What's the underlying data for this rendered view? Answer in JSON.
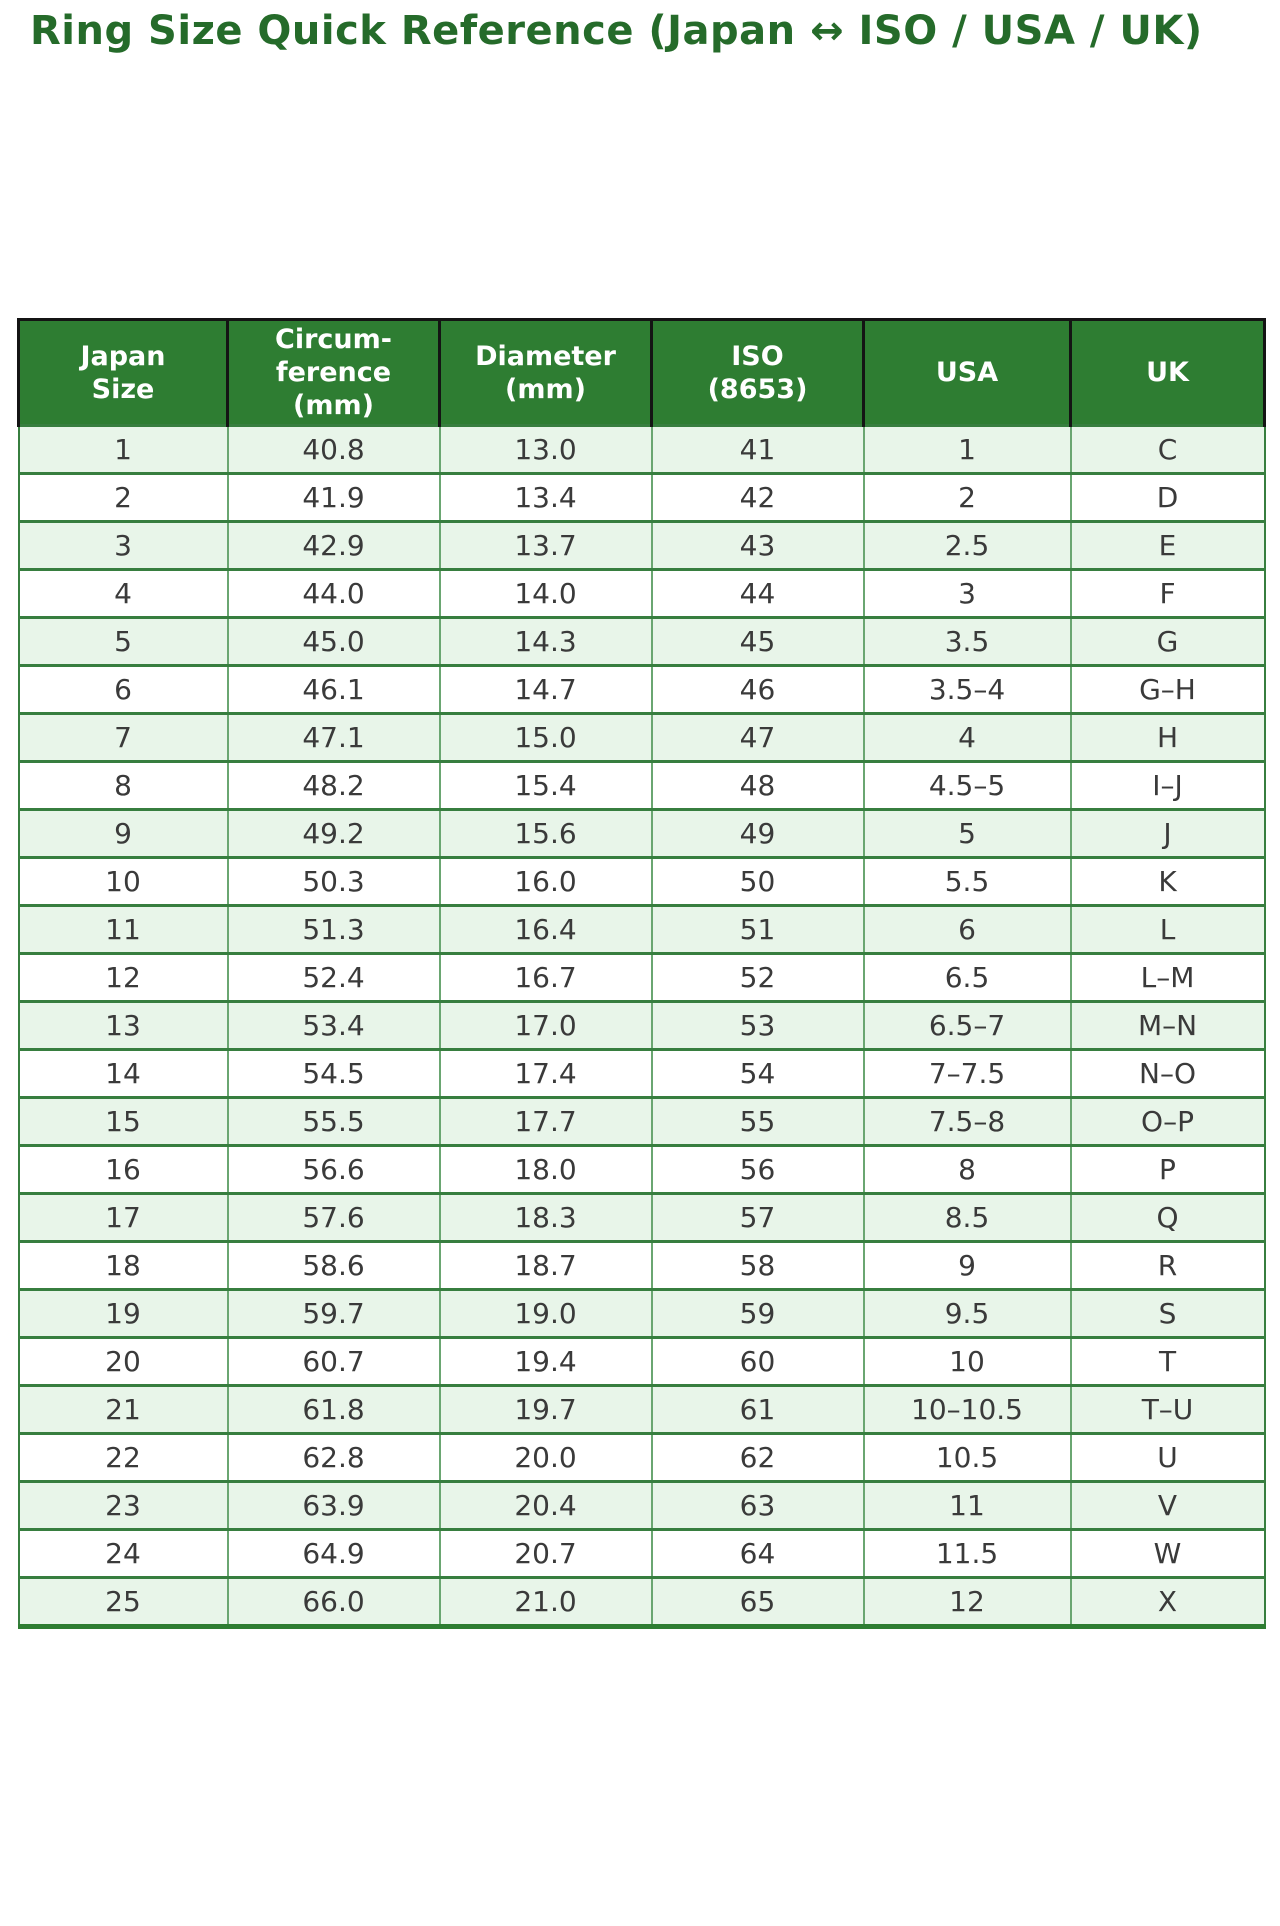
{
  "page": {
    "title": "Ring Size Quick Reference (Japan ↔ ISO / USA / UK)"
  },
  "colors": {
    "title_text": "#256b2a",
    "header_bg": "#2e7d32",
    "header_text": "#ffffff",
    "header_grid_line": "#141414",
    "row_alt_bg": "#e8f5e9",
    "row_bg": "#ffffff",
    "body_text": "#3a3a3a",
    "grid_line": "#377e3f"
  },
  "table": {
    "display_headers": [
      "Japan\nSize",
      "Circum-\nference\n(mm)",
      "Diameter\n(mm)",
      "ISO\n(8653)",
      "USA",
      "UK"
    ]
  },
  "chart_data": {
    "type": "table",
    "title": "Ring Size Quick Reference (Japan ↔ ISO / USA / UK)",
    "columns": [
      "Japan Size",
      "Circumference (mm)",
      "Diameter (mm)",
      "ISO (8653)",
      "USA",
      "UK"
    ],
    "rows": [
      [
        "1",
        "40.8",
        "13.0",
        "41",
        "1",
        "C"
      ],
      [
        "2",
        "41.9",
        "13.4",
        "42",
        "2",
        "D"
      ],
      [
        "3",
        "42.9",
        "13.7",
        "43",
        "2.5",
        "E"
      ],
      [
        "4",
        "44.0",
        "14.0",
        "44",
        "3",
        "F"
      ],
      [
        "5",
        "45.0",
        "14.3",
        "45",
        "3.5",
        "G"
      ],
      [
        "6",
        "46.1",
        "14.7",
        "46",
        "3.5–4",
        "G–H"
      ],
      [
        "7",
        "47.1",
        "15.0",
        "47",
        "4",
        "H"
      ],
      [
        "8",
        "48.2",
        "15.4",
        "48",
        "4.5–5",
        "I–J"
      ],
      [
        "9",
        "49.2",
        "15.6",
        "49",
        "5",
        "J"
      ],
      [
        "10",
        "50.3",
        "16.0",
        "50",
        "5.5",
        "K"
      ],
      [
        "11",
        "51.3",
        "16.4",
        "51",
        "6",
        "L"
      ],
      [
        "12",
        "52.4",
        "16.7",
        "52",
        "6.5",
        "L–M"
      ],
      [
        "13",
        "53.4",
        "17.0",
        "53",
        "6.5–7",
        "M–N"
      ],
      [
        "14",
        "54.5",
        "17.4",
        "54",
        "7–7.5",
        "N–O"
      ],
      [
        "15",
        "55.5",
        "17.7",
        "55",
        "7.5–8",
        "O–P"
      ],
      [
        "16",
        "56.6",
        "18.0",
        "56",
        "8",
        "P"
      ],
      [
        "17",
        "57.6",
        "18.3",
        "57",
        "8.5",
        "Q"
      ],
      [
        "18",
        "58.6",
        "18.7",
        "58",
        "9",
        "R"
      ],
      [
        "19",
        "59.7",
        "19.0",
        "59",
        "9.5",
        "S"
      ],
      [
        "20",
        "60.7",
        "19.4",
        "60",
        "10",
        "T"
      ],
      [
        "21",
        "61.8",
        "19.7",
        "61",
        "10–10.5",
        "T–U"
      ],
      [
        "22",
        "62.8",
        "20.0",
        "62",
        "10.5",
        "U"
      ],
      [
        "23",
        "63.9",
        "20.4",
        "63",
        "11",
        "V"
      ],
      [
        "24",
        "64.9",
        "20.7",
        "64",
        "11.5",
        "W"
      ],
      [
        "25",
        "66.0",
        "21.0",
        "65",
        "12",
        "X"
      ]
    ]
  }
}
